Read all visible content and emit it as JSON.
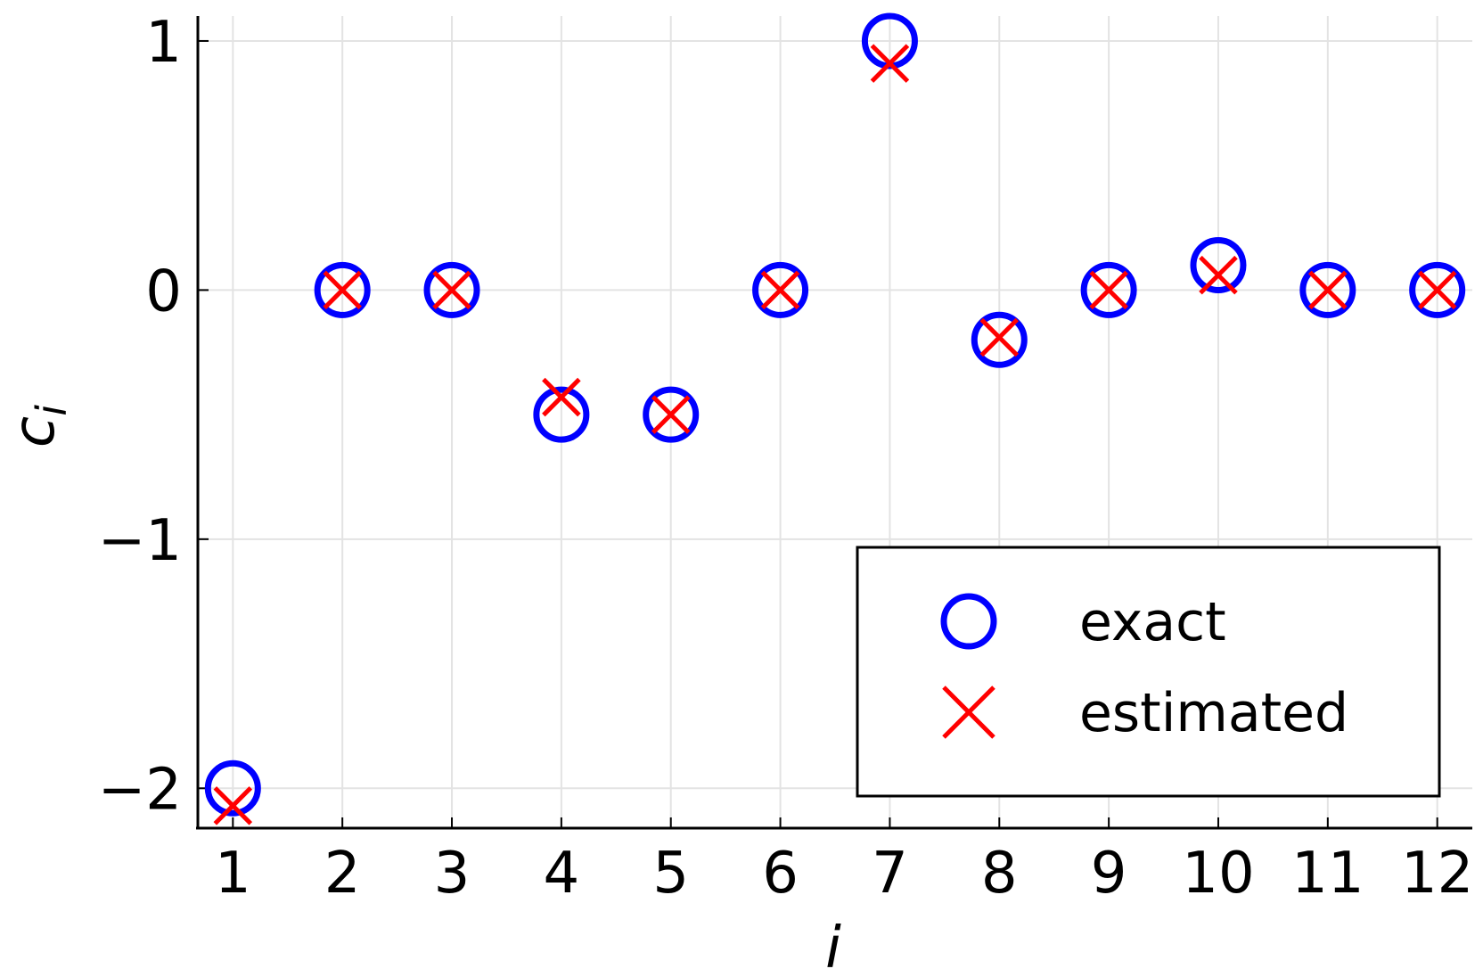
{
  "chart_data": {
    "type": "scatter",
    "title": "",
    "xlabel": "i",
    "ylabel": "c",
    "ylabel_subscript": "i",
    "x": [
      1,
      2,
      3,
      4,
      5,
      6,
      7,
      8,
      9,
      10,
      11,
      12
    ],
    "xlim": [
      0.68,
      12.32
    ],
    "ylim": [
      -2.16,
      1.1
    ],
    "x_ticks": [
      1,
      2,
      3,
      4,
      5,
      6,
      7,
      8,
      9,
      10,
      11,
      12
    ],
    "y_ticks": [
      1,
      0,
      -1,
      -2
    ],
    "y_tick_labels": [
      "1",
      "0",
      "−1",
      "−2"
    ],
    "grid": true,
    "legend_placement": "bottom-right",
    "series": [
      {
        "name": "exact",
        "marker": "circle",
        "color": "#0000ff",
        "values": [
          -2,
          0,
          0,
          -0.5,
          -0.5,
          0,
          1,
          -0.2,
          0,
          0.1,
          0,
          0
        ]
      },
      {
        "name": "estimated",
        "marker": "x",
        "color": "#ff0000",
        "values": [
          -2.07,
          0,
          0,
          -0.43,
          -0.5,
          0,
          0.91,
          -0.19,
          0,
          0.06,
          0,
          0
        ]
      }
    ]
  }
}
